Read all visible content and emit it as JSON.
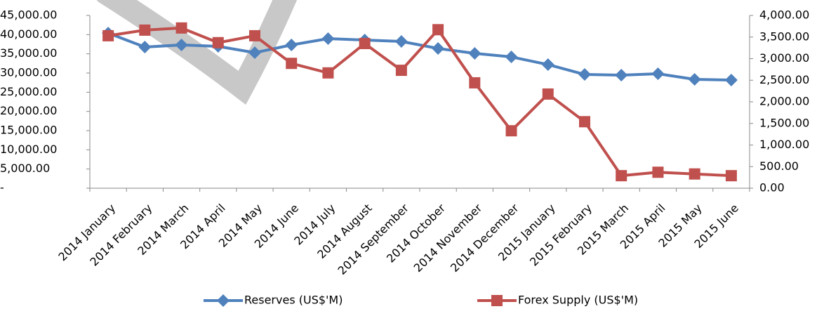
{
  "chart_data": {
    "type": "line",
    "categories": [
      "2014 January",
      "2014 February",
      "2014 March",
      "2014 April",
      "2014 May",
      "2014 June",
      "2014 July",
      "2014 August",
      "2014 September",
      "2014 October",
      "2014 November",
      "2014 December",
      "2015 January",
      "2015 February",
      "2015 March",
      "2015 April",
      "2015 May",
      "2015 June"
    ],
    "series": [
      {
        "name": "Reserves (US$'M)",
        "color": "#4f81bd",
        "marker": "diamond",
        "values": [
          40400,
          36770,
          37320,
          36950,
          35300,
          37320,
          38960,
          38600,
          38230,
          36400,
          35120,
          34200,
          32200,
          29630,
          29450,
          29820,
          28350,
          28170
        ]
      },
      {
        "name": "Forex Supply (US$'M)",
        "color": "#c0504d",
        "marker": "square",
        "axis": "y2",
        "values": [
          3530,
          3660,
          3710,
          3370,
          3530,
          2890,
          2670,
          3350,
          2730,
          3670,
          2440,
          1330,
          2180,
          1540,
          290,
          370,
          330,
          290
        ]
      }
    ],
    "ylim": [
      0,
      45000
    ],
    "yticks": [
      {
        "value": 0,
        "label": "-"
      },
      {
        "value": 5000,
        "label": "5,000.00"
      },
      {
        "value": 10000,
        "label": "10,000.00"
      },
      {
        "value": 15000,
        "label": "15,000.00"
      },
      {
        "value": 20000,
        "label": "20,000.00"
      },
      {
        "value": 25000,
        "label": "25,000.00"
      },
      {
        "value": 30000,
        "label": "30,000.00"
      },
      {
        "value": 35000,
        "label": "35,000.00"
      },
      {
        "value": 40000,
        "label": "40,000.00"
      },
      {
        "value": 45000,
        "label": "45,000.00"
      }
    ],
    "y2lim": [
      0,
      4000
    ],
    "y2ticks": [
      {
        "value": 0,
        "label": "0.00"
      },
      {
        "value": 500,
        "label": "500.00"
      },
      {
        "value": 1000,
        "label": "1,000.00"
      },
      {
        "value": 1500,
        "label": "1,500.00"
      },
      {
        "value": 2000,
        "label": "2,000.00"
      },
      {
        "value": 2500,
        "label": "2,500.00"
      },
      {
        "value": 3000,
        "label": "3,000.00"
      },
      {
        "value": 3500,
        "label": "3,500.00"
      },
      {
        "value": 4000,
        "label": "4,000.00"
      }
    ],
    "legend": "bottom"
  }
}
